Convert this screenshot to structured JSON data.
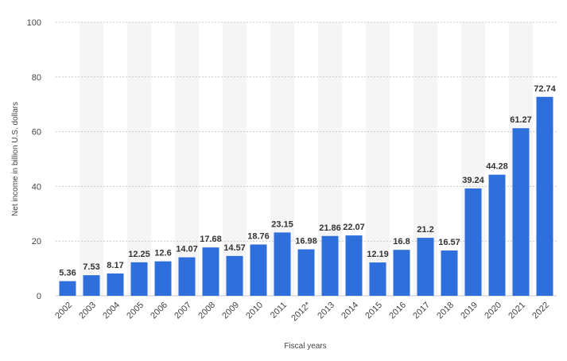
{
  "chart_data": {
    "type": "bar",
    "title": "",
    "xlabel": "Fiscal years",
    "ylabel": "Net income in billion U.S. dollars",
    "ylim": [
      0,
      100
    ],
    "yticks": [
      0,
      20,
      40,
      60,
      80,
      100
    ],
    "grid": true,
    "bar_color": "#2f6fdc",
    "band_color": "#f5f5f5",
    "categories": [
      "2002",
      "2003",
      "2004",
      "2005",
      "2006",
      "2007",
      "2008",
      "2009",
      "2010",
      "2011",
      "2012*",
      "2013",
      "2014",
      "2015",
      "2016",
      "2017",
      "2018",
      "2019",
      "2020",
      "2021",
      "2022"
    ],
    "values": [
      5.36,
      7.53,
      8.17,
      12.25,
      12.6,
      14.07,
      17.68,
      14.57,
      18.76,
      23.15,
      16.98,
      21.86,
      22.07,
      12.19,
      16.8,
      21.2,
      16.57,
      39.24,
      44.28,
      61.27,
      72.74
    ],
    "value_labels": [
      "5.36",
      "7.53",
      "8.17",
      "12.25",
      "12.6",
      "14.07",
      "17.68",
      "14.57",
      "18.76",
      "23.15",
      "16.98",
      "21.86",
      "22.07",
      "12.19",
      "16.8",
      "21.2",
      "16.57",
      "39.24",
      "44.28",
      "61.27",
      "72.74"
    ]
  }
}
